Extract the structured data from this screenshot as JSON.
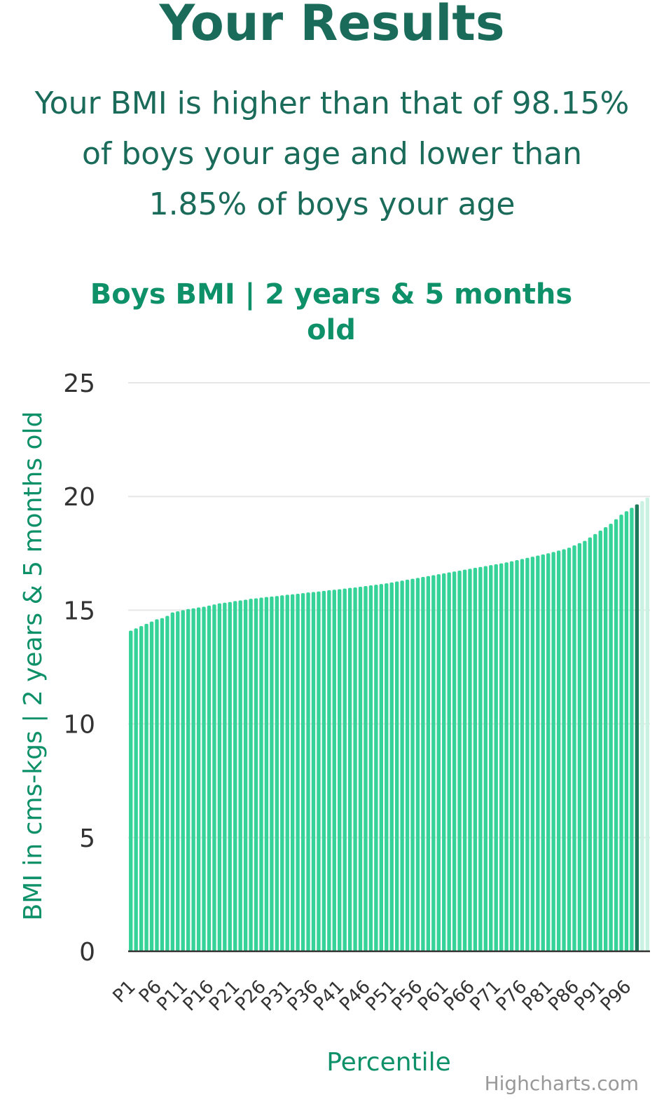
{
  "page": {
    "heading": "Your Results",
    "summary_lines": [
      "Your BMI is higher than that of 98.15%",
      "of boys your age and lower than",
      "1.85% of boys your age"
    ]
  },
  "chart_data": {
    "type": "bar",
    "title_lines": [
      "Boys BMI | 2 years & 5 months",
      "old"
    ],
    "xlabel": "Percentile",
    "ylabel": "BMI in cms-kgs | 2 years & 5 months old",
    "ylim": [
      0,
      25
    ],
    "yticks": [
      0,
      5,
      10,
      15,
      20,
      25
    ],
    "categories": [
      "P1",
      "P2",
      "P3",
      "P4",
      "P5",
      "P6",
      "P7",
      "P8",
      "P9",
      "P10",
      "P11",
      "P12",
      "P13",
      "P14",
      "P15",
      "P16",
      "P17",
      "P18",
      "P19",
      "P20",
      "P21",
      "P22",
      "P23",
      "P24",
      "P25",
      "P26",
      "P27",
      "P28",
      "P29",
      "P30",
      "P31",
      "P32",
      "P33",
      "P34",
      "P35",
      "P36",
      "P37",
      "P38",
      "P39",
      "P40",
      "P41",
      "P42",
      "P43",
      "P44",
      "P45",
      "P46",
      "P47",
      "P48",
      "P49",
      "P50",
      "P51",
      "P52",
      "P53",
      "P54",
      "P55",
      "P56",
      "P57",
      "P58",
      "P59",
      "P60",
      "P61",
      "P62",
      "P63",
      "P64",
      "P65",
      "P66",
      "P67",
      "P68",
      "P69",
      "P70",
      "P71",
      "P72",
      "P73",
      "P74",
      "P75",
      "P76",
      "P77",
      "P78",
      "P79",
      "P80",
      "P81",
      "P82",
      "P83",
      "P84",
      "P85",
      "P86",
      "P87",
      "P88",
      "P89",
      "P90",
      "P91",
      "P92",
      "P93",
      "P94",
      "P95",
      "P96",
      "P97",
      "P98",
      "P99",
      "P100"
    ],
    "labeled_categories": [
      "P1",
      "P6",
      "P11",
      "P16",
      "P21",
      "P26",
      "P31",
      "P36",
      "P41",
      "P46",
      "P51",
      "P56",
      "P61",
      "P66",
      "P71",
      "P76",
      "P81",
      "P86",
      "P91",
      "P96"
    ],
    "values": [
      14.1,
      14.2,
      14.3,
      14.4,
      14.5,
      14.6,
      14.65,
      14.75,
      14.9,
      14.95,
      15.0,
      15.05,
      15.08,
      15.12,
      15.15,
      15.2,
      15.25,
      15.3,
      15.33,
      15.36,
      15.4,
      15.43,
      15.46,
      15.5,
      15.52,
      15.55,
      15.58,
      15.6,
      15.62,
      15.65,
      15.68,
      15.7,
      15.72,
      15.75,
      15.78,
      15.8,
      15.82,
      15.85,
      15.88,
      15.9,
      15.92,
      15.95,
      15.98,
      16.0,
      16.03,
      16.06,
      16.09,
      16.12,
      16.15,
      16.18,
      16.22,
      16.26,
      16.3,
      16.34,
      16.38,
      16.42,
      16.46,
      16.5,
      16.54,
      16.58,
      16.62,
      16.66,
      16.7,
      16.74,
      16.78,
      16.82,
      16.86,
      16.9,
      16.94,
      16.98,
      17.02,
      17.06,
      17.1,
      17.15,
      17.2,
      17.25,
      17.3,
      17.35,
      17.4,
      17.45,
      17.5,
      17.56,
      17.62,
      17.68,
      17.75,
      17.85,
      17.95,
      18.05,
      18.2,
      18.35,
      18.5,
      18.65,
      18.8,
      19.0,
      19.2,
      19.35,
      19.5,
      19.65,
      19.8,
      19.95
    ],
    "highlight_category": "P98",
    "colors": {
      "bar": "#36d399",
      "highlight": "#1a7a5a",
      "faded": "#c9f2e2",
      "gridline": "#e6e6e6",
      "axis_line": "#333333"
    },
    "credits": "Highcharts.com"
  }
}
